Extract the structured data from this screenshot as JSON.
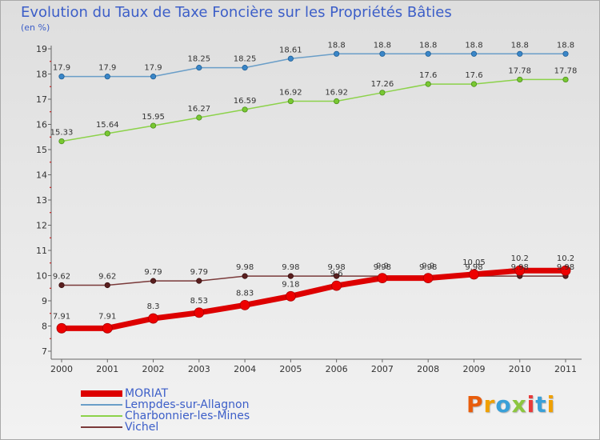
{
  "title": "Evolution du Taux de Taxe Foncière sur les Propriétés Bâties",
  "unit_label": "(en %)",
  "logo": {
    "text": "Proxiti",
    "colors": [
      "#e85d0c",
      "#f0a000",
      "#3aa0d8",
      "#8cc63f",
      "#e83a3a",
      "#3aa0d8",
      "#f0a000"
    ]
  },
  "chart_data": {
    "type": "line",
    "title": "Evolution du Taux de Taxe Foncière sur les Propriétés Bâties",
    "ylabel": "(en %)",
    "xlabel": "",
    "ylim": [
      7,
      19
    ],
    "yticks": [
      7,
      8,
      9,
      10,
      11,
      12,
      13,
      14,
      15,
      16,
      17,
      18,
      19
    ],
    "grid": false,
    "legend": "bottom-left",
    "categories": [
      "2000",
      "2001",
      "2002",
      "2003",
      "2004",
      "2005",
      "2006",
      "2007",
      "2008",
      "2009",
      "2010",
      "2011"
    ],
    "series": [
      {
        "name": "MORIAT",
        "color": "#ee0000",
        "values": [
          7.91,
          7.91,
          8.3,
          8.53,
          8.83,
          9.18,
          9.6,
          9.9,
          9.9,
          10.05,
          10.2,
          10.2
        ]
      },
      {
        "name": "Lempdes-sur-Allagnon",
        "color": "#6a9ec8",
        "values": [
          17.9,
          17.9,
          17.9,
          18.25,
          18.25,
          18.61,
          18.8,
          18.8,
          18.8,
          18.8,
          18.8,
          18.8
        ]
      },
      {
        "name": "Charbonnier-les-Mines",
        "color": "#8cd24a",
        "values": [
          15.33,
          15.64,
          15.95,
          16.27,
          16.59,
          16.92,
          16.92,
          17.26,
          17.6,
          17.6,
          17.78,
          17.78
        ]
      },
      {
        "name": "Vichel",
        "color": "#6b2d2d",
        "values": [
          9.62,
          9.62,
          9.79,
          9.79,
          9.98,
          9.98,
          9.98,
          9.98,
          9.98,
          9.98,
          9.98,
          9.98
        ]
      }
    ]
  }
}
